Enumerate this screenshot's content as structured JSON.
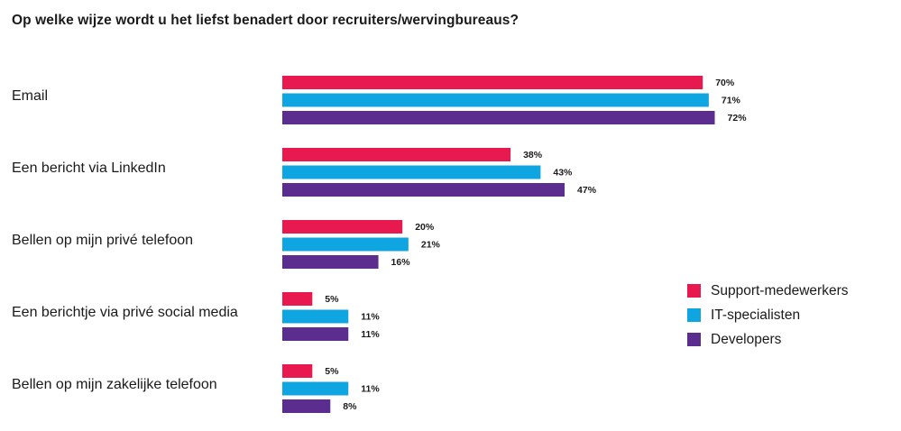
{
  "chart_data": {
    "type": "bar",
    "orientation": "horizontal",
    "title": "Op welke wijze wordt u het liefst benadert door recruiters/wervingbureaus?",
    "categories": [
      "Email",
      "Een bericht via LinkedIn",
      "Bellen op mijn privé telefoon",
      "Een berichtje via privé social media",
      "Bellen op mijn zakelijke telefoon"
    ],
    "series": [
      {
        "name": "Support-medewerkers",
        "color": "#e8194f",
        "values": [
          70,
          38,
          20,
          5,
          5
        ],
        "labels": [
          "70%",
          "38%",
          "20%",
          "5%",
          "5%"
        ]
      },
      {
        "name": "IT-specialisten",
        "color": "#0fa5e0",
        "values": [
          71,
          43,
          21,
          11,
          11
        ],
        "labels": [
          "71%",
          "43%",
          "21%",
          "11%",
          "11%"
        ]
      },
      {
        "name": "Developers",
        "color": "#5b2d8e",
        "values": [
          72,
          47,
          16,
          11,
          8
        ],
        "labels": [
          "72%",
          "47%",
          "16%",
          "11%",
          "8%"
        ]
      }
    ],
    "xlim": [
      0,
      100
    ],
    "value_suffix": "%",
    "grid": false,
    "legend_position": "right"
  }
}
